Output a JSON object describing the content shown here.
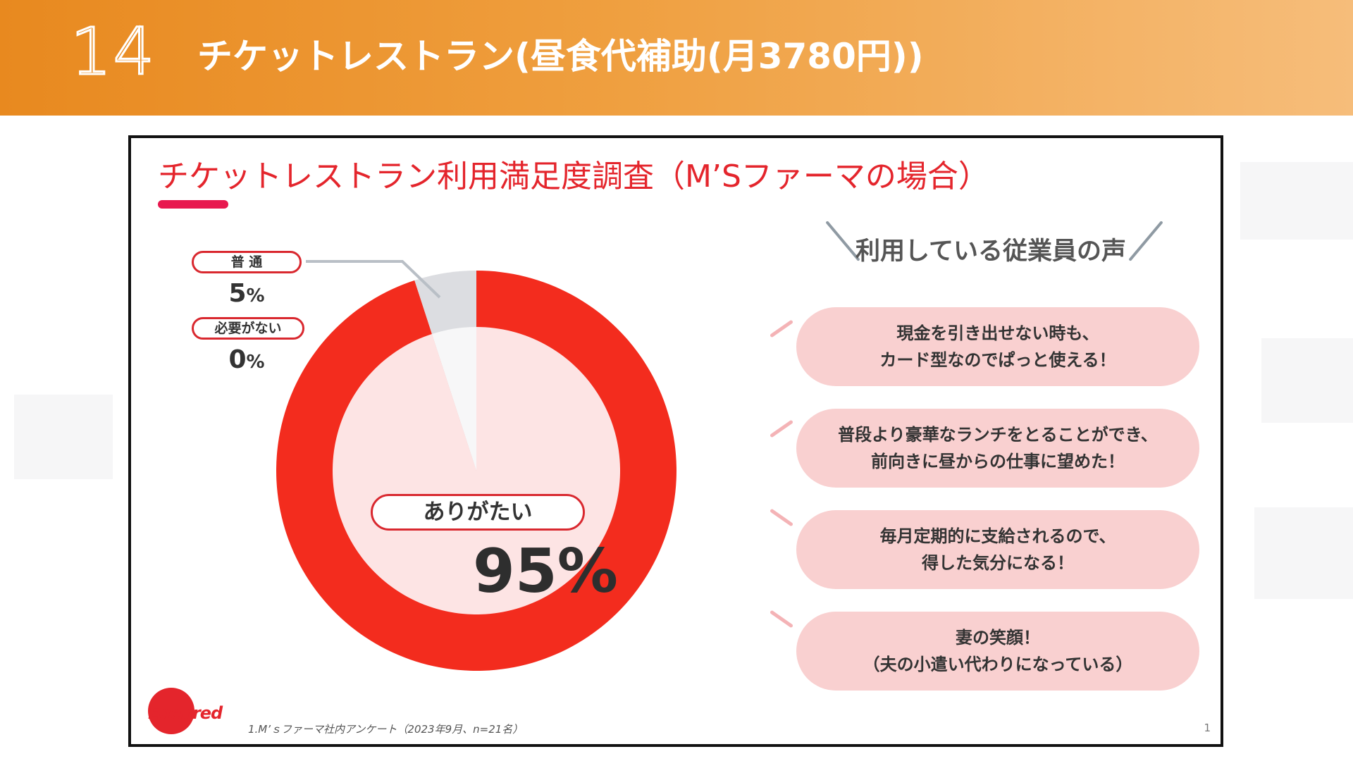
{
  "header": {
    "slide_number": "14",
    "title": "チケットレストラン(昼食代補助(月3780円))"
  },
  "panel": {
    "title": "チケットレストラン利用満足度調査（M’Sファーマの場合）",
    "footnote": "1.M’ｓファーマ社内アンケート（2023年9月、n=21名）",
    "page_number": "1",
    "logo_text": "Edenred"
  },
  "chart_data": {
    "type": "pie",
    "variant": "donut",
    "categories": [
      "ありがたい",
      "普 通",
      "必要がない"
    ],
    "values": [
      95,
      5,
      0
    ],
    "unit": "%",
    "colors": [
      "#f32c1e",
      "#dcdde1",
      "#f7f7f8"
    ],
    "inner_colors": [
      "#fde4e4",
      "#f7f7f8",
      "#f7f7f8"
    ],
    "labels": [
      {
        "name": "ありがたい",
        "value_text": "95",
        "unit_text": "%"
      },
      {
        "name": "普 通",
        "value_text": "5",
        "unit_text": "%"
      },
      {
        "name": "必要がない",
        "value_text": "0",
        "unit_text": "%"
      }
    ]
  },
  "voices": {
    "title": "利用している従業員の声",
    "items": [
      {
        "line1": "現金を引き出せない時も、",
        "line2": "カード型なのでぱっと使える！"
      },
      {
        "line1": "普段より豪華なランチをとることができ、",
        "line2": "前向きに昼からの仕事に望めた！"
      },
      {
        "line1": "毎月定期的に支給されるので、",
        "line2": "得した気分になる！"
      },
      {
        "line1": "妻の笑顔！",
        "line2": "（夫の小遣い代わりになっている）"
      }
    ]
  },
  "colors": {
    "header_start": "#e8891f",
    "header_end": "#f6bd7a",
    "accent_red": "#e4252c",
    "donut_red": "#f32c1e",
    "bubble_pink": "#f9d0d0"
  }
}
